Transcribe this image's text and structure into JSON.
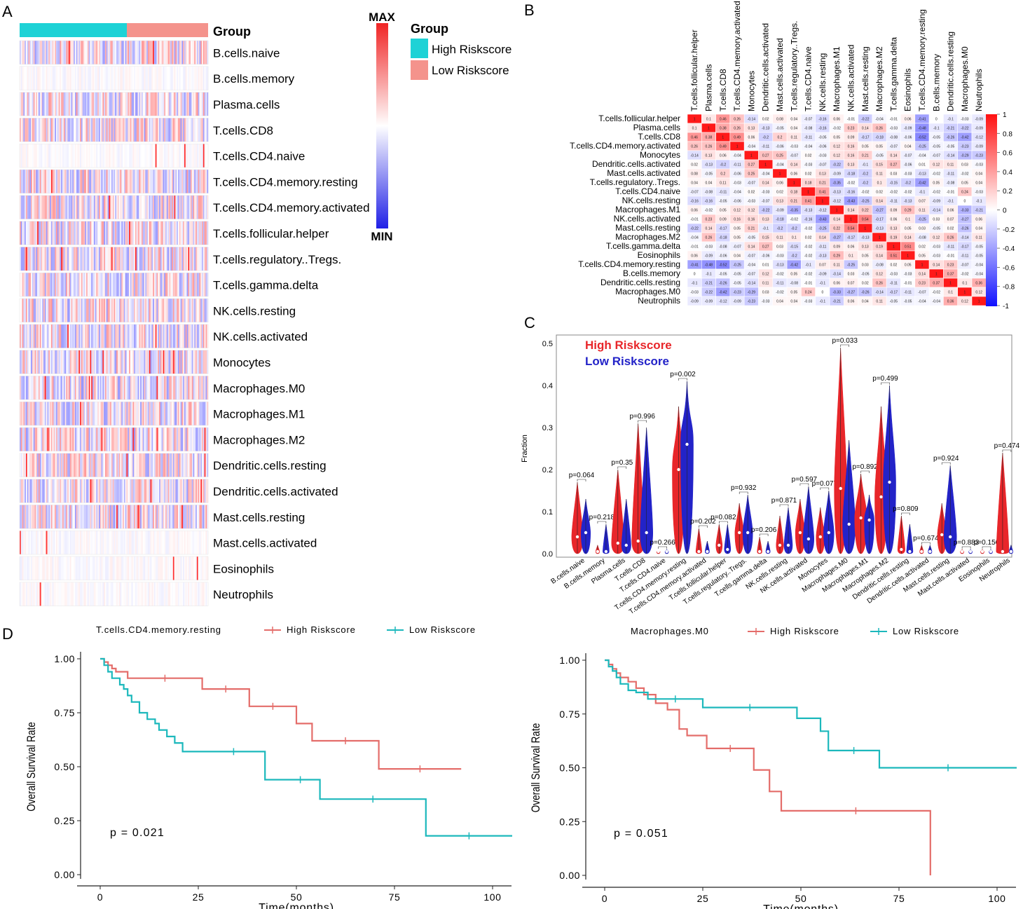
{
  "panel_labels": [
    "A",
    "B",
    "C",
    "D"
  ],
  "colors": {
    "high": "#1ed2d6",
    "low": "#f4938c",
    "red": "#e8262a",
    "blue": "#2323c8",
    "km_high": "#e46d6a",
    "km_low": "#1cb8bc"
  },
  "heatmap": {
    "group_label": "Group",
    "scale_max": "MAX",
    "scale_min": "MIN",
    "legend_title": "Group",
    "legend": [
      "High Riskscore",
      "Low Riskscore"
    ]
  },
  "corr": {
    "scale_ticks": [
      "1",
      "0.8",
      "0.6",
      "0.4",
      "0.2",
      "0",
      "-0.2",
      "-0.4",
      "-0.6",
      "-0.8",
      "-1"
    ],
    "cols": [
      "T.cells.follicular.helper",
      "Plasma.cells",
      "T.cells.CD8",
      "T.cells.CD4.memory.activated",
      "Monocytes",
      "Dendritic.cells.activated",
      "Mast.cells.activated",
      "T.cells.regulatory..Tregs.",
      "T.cells.CD4.naive",
      "NK.cells.resting",
      "Macrophages.M1",
      "NK.cells.activated",
      "Mast.cells.resting",
      "Macrophages.M2",
      "T.cells.gamma.delta",
      "Eosinophils",
      "T.cells.CD4.memory.resting",
      "B.cells.memory",
      "Dendritic.cells.resting",
      "Macrophages.M0",
      "Neutrophils"
    ],
    "rows": [
      "T.cells.follicular.helper",
      "Plasma.cells",
      "T.cells.CD8",
      "T.cells.CD4.memory.activated",
      "Monocytes",
      "Dendritic.cells.activated",
      "Mast.cells.activated",
      "T.cells.regulatory..Tregs.",
      "T.cells.CD4.naive",
      "NK.cells.resting",
      "Macrophages.M1",
      "NK.cells.activated",
      "Mast.cells.resting",
      "Macrophages.M2",
      "T.cells.gamma.delta",
      "Eosinophils",
      "T.cells.CD4.memory.resting",
      "B.cells.memory",
      "Dendritic.cells.resting",
      "Macrophages.M0",
      "Neutrophils"
    ]
  },
  "chart_data": [
    {
      "panel": "A",
      "type": "heatmap",
      "title": "",
      "group_annotation": "Group",
      "group_levels": [
        "High Riskscore",
        "Low Riskscore"
      ],
      "rows": [
        "B.cells.naive",
        "B.cells.memory",
        "Plasma.cells",
        "T.cells.CD8",
        "T.cells.CD4.naive",
        "T.cells.CD4.memory.resting",
        "T.cells.CD4.memory.activated",
        "T.cells.follicular.helper",
        "T.cells.regulatory..Tregs.",
        "T.cells.gamma.delta",
        "NK.cells.resting",
        "NK.cells.activated",
        "Monocytes",
        "Macrophages.M0",
        "Macrophages.M1",
        "Macrophages.M2",
        "Dendritic.cells.resting",
        "Dendritic.cells.activated",
        "Mast.cells.resting",
        "Mast.cells.activated",
        "Eosinophils",
        "Neutrophils"
      ],
      "color_scale": [
        "MIN",
        "MAX"
      ]
    },
    {
      "panel": "B",
      "type": "heatmap",
      "title": "",
      "values": [
        [
          1,
          0.1,
          0.46,
          0.26,
          -0.14,
          0.02,
          0.08,
          0.04,
          -0.07,
          -0.16,
          0.06,
          -0.01,
          -0.22,
          -0.04,
          -0.01,
          0.06,
          -0.41,
          0,
          -0.1,
          -0.03,
          -0.09
        ],
        [
          0.1,
          1,
          0.38,
          0.26,
          0.13,
          -0.13,
          -0.05,
          0.04,
          -0.08,
          -0.16,
          -0.02,
          0.23,
          0.14,
          0.26,
          -0.03,
          -0.09,
          -0.48,
          -0.1,
          -0.21,
          -0.22,
          -0.09
        ],
        [
          0.46,
          0.38,
          1,
          0.49,
          0.06,
          -0.2,
          0.2,
          0.11,
          -0.11,
          -0.05,
          0.05,
          0.09,
          -0.17,
          -0.18,
          -0.08,
          -0.06,
          -0.52,
          -0.05,
          -0.26,
          -0.42,
          -0.12
        ],
        [
          0.26,
          0.26,
          0.49,
          1,
          -0.04,
          -0.11,
          -0.06,
          -0.03,
          -0.04,
          -0.06,
          0.12,
          0.16,
          0.05,
          0.05,
          -0.07,
          0.04,
          -0.25,
          -0.05,
          -0.05,
          -0.23,
          -0.09
        ],
        [
          -0.14,
          0.13,
          0.06,
          -0.04,
          1,
          0.27,
          0.25,
          -0.07,
          0.02,
          -0.03,
          0.12,
          0.16,
          0.21,
          -0.05,
          0.14,
          -0.07,
          -0.04,
          -0.07,
          -0.14,
          -0.29,
          -0.23
        ],
        [
          0.02,
          -0.13,
          -0.2,
          -0.11,
          0.27,
          1,
          -0.04,
          0.14,
          -0.03,
          -0.07,
          -0.22,
          0.13,
          -0.1,
          0.15,
          0.27,
          -0.06,
          0.01,
          0.12,
          0.11,
          0.03,
          -0.03
        ],
        [
          0.08,
          -0.05,
          0.2,
          -0.06,
          0.25,
          -0.04,
          1,
          0.06,
          0.02,
          0.13,
          -0.09,
          -0.18,
          -0.2,
          0.11,
          0.03,
          -0.03,
          -0.13,
          -0.02,
          -0.11,
          -0.02,
          0.04
        ],
        [
          0.04,
          0.04,
          0.11,
          -0.03,
          -0.07,
          0.14,
          0.06,
          1,
          0.18,
          0.21,
          -0.35,
          -0.02,
          -0.2,
          0.1,
          -0.15,
          -0.2,
          -0.42,
          0.05,
          -0.08,
          0.05,
          0.04
        ],
        [
          -0.07,
          -0.08,
          -0.11,
          -0.04,
          0.02,
          -0.03,
          0.02,
          0.18,
          1,
          0.41,
          -0.13,
          -0.16,
          -0.02,
          0.02,
          -0.02,
          -0.02,
          -0.1,
          -0.02,
          -0.01,
          0.24,
          -0.03
        ],
        [
          -0.16,
          -0.16,
          -0.05,
          -0.06,
          -0.03,
          -0.07,
          0.13,
          0.21,
          0.41,
          1,
          -0.12,
          -0.43,
          -0.25,
          0.14,
          -0.11,
          -0.13,
          0.07,
          -0.09,
          -0.1,
          0,
          -0.1
        ],
        [
          0.06,
          -0.02,
          0.05,
          0.12,
          0.12,
          -0.22,
          -0.09,
          -0.35,
          -0.13,
          -0.12,
          1,
          0.14,
          0.22,
          -0.27,
          0.09,
          0.29,
          0.11,
          -0.14,
          0.06,
          -0.33,
          -0.21
        ],
        [
          -0.01,
          0.23,
          0.09,
          0.16,
          0.16,
          0.13,
          -0.18,
          -0.02,
          -0.16,
          -0.43,
          0.14,
          1,
          0.54,
          -0.17,
          0.06,
          0.1,
          -0.25,
          0.03,
          0.07,
          -0.27,
          0.06
        ],
        [
          -0.22,
          0.14,
          -0.17,
          0.05,
          0.21,
          -0.1,
          -0.2,
          -0.2,
          -0.02,
          -0.25,
          0.22,
          0.54,
          1,
          -0.13,
          0.13,
          0.05,
          0.03,
          -0.05,
          0.02,
          -0.26,
          0.04
        ],
        [
          -0.04,
          0.26,
          -0.18,
          0.05,
          -0.05,
          0.15,
          0.11,
          0.1,
          0.02,
          0.14,
          -0.27,
          -0.17,
          -0.13,
          1,
          0.19,
          0.14,
          -0.08,
          0.12,
          0.26,
          -0.14,
          0.11
        ],
        [
          -0.01,
          -0.03,
          -0.08,
          -0.07,
          0.14,
          0.27,
          0.03,
          -0.15,
          -0.02,
          -0.11,
          0.09,
          0.06,
          0.13,
          0.19,
          1,
          0.51,
          0.02,
          -0.03,
          -0.11,
          -0.17,
          -0.05
        ],
        [
          0.06,
          -0.09,
          -0.06,
          0.04,
          -0.07,
          -0.06,
          -0.03,
          -0.2,
          -0.02,
          -0.13,
          0.29,
          0.1,
          0.05,
          0.14,
          0.51,
          1,
          0.05,
          -0.03,
          -0.01,
          -0.11,
          -0.05
        ],
        [
          -0.41,
          -0.48,
          -0.52,
          -0.25,
          -0.04,
          0.01,
          -0.13,
          -0.42,
          -0.1,
          0.07,
          0.11,
          -0.25,
          0.03,
          -0.08,
          0.02,
          0.05,
          1,
          0.14,
          0.23,
          -0.07,
          -0.04
        ],
        [
          0,
          -0.1,
          -0.05,
          -0.05,
          -0.07,
          0.12,
          -0.02,
          0.05,
          -0.02,
          -0.09,
          -0.14,
          0.03,
          -0.05,
          0.12,
          -0.03,
          -0.03,
          0.14,
          1,
          0.37,
          -0.02,
          -0.04
        ],
        [
          -0.1,
          -0.21,
          -0.26,
          -0.05,
          -0.14,
          0.11,
          -0.11,
          -0.08,
          -0.01,
          -0.1,
          0.06,
          0.07,
          0.02,
          0.26,
          -0.11,
          -0.01,
          0.23,
          0.37,
          1,
          0.1,
          0.36
        ],
        [
          -0.03,
          -0.22,
          -0.42,
          -0.23,
          -0.29,
          0.03,
          -0.02,
          0.05,
          0.24,
          0,
          -0.33,
          -0.27,
          -0.26,
          -0.14,
          -0.17,
          -0.11,
          -0.07,
          -0.02,
          0.1,
          1,
          0.12
        ],
        [
          -0.09,
          -0.09,
          -0.12,
          -0.09,
          -0.23,
          -0.03,
          0.04,
          0.04,
          -0.03,
          -0.1,
          -0.21,
          0.06,
          0.04,
          0.11,
          -0.05,
          -0.05,
          -0.04,
          -0.04,
          0.36,
          0.12,
          1
        ]
      ],
      "color_range": [
        -1,
        1
      ]
    },
    {
      "panel": "C",
      "type": "violin",
      "title": "",
      "ylabel": "Fraction",
      "ylim": [
        0,
        0.5
      ],
      "yticks": [
        "0.0",
        "0.1",
        "0.2",
        "0.3",
        "0.4",
        "0.5"
      ],
      "legend": [
        "High Riskscore",
        "Low Riskscore"
      ],
      "categories": [
        "B.cells.naive",
        "B.cells.memory",
        "Plasma.cells",
        "T.cells.CD8",
        "T.cells.CD4.naive",
        "T.cells.CD4.memory.resting",
        "T.cells.CD4.memory.activated",
        "T.cells.follicular.helper",
        "T.cells.regulatory..Tregs.",
        "T.cells.gamma.delta",
        "NK.cells.resting",
        "NK.cells.activated",
        "Monocytes",
        "Macrophages.M0",
        "Macrophages.M1",
        "Macrophages.M2",
        "Dendritic.cells.resting",
        "Dendritic.cells.activated",
        "Mast.cells.resting",
        "Mast.cells.activated",
        "Eosinophils",
        "Neutrophils"
      ],
      "pvalues": [
        "p=0.064",
        "p=0.218",
        "p=0.35",
        "p=0.996",
        "p=0.266",
        "p=0.002",
        "p=0.202",
        "p=0.082",
        "p=0.932",
        "p=0.206",
        "p=0.871",
        "p=0.597",
        "p=0.077",
        "p=0.033",
        "p=0.892",
        "p=0.499",
        "p=0.809",
        "p=0.674",
        "p=0.924",
        "p=0.883",
        "p=0.156",
        "p=0.474"
      ],
      "series": [
        {
          "name": "High Riskscore",
          "max": [
            0.17,
            0.02,
            0.2,
            0.31,
            0.005,
            0.35,
            0.06,
            0.07,
            0.12,
            0.04,
            0.09,
            0.13,
            0.11,
            0.49,
            0.19,
            0.35,
            0.09,
            0.02,
            0.12,
            0.01,
            0.01,
            0.24
          ],
          "median": [
            0.04,
            0.005,
            0.025,
            0.03,
            0.0,
            0.2,
            0.0,
            0.02,
            0.05,
            0.0,
            0.02,
            0.05,
            0.04,
            0.155,
            0.085,
            0.135,
            0.01,
            0.0,
            0.045,
            0.0,
            0.0,
            0.0
          ]
        },
        {
          "name": "Low Riskscore",
          "max": [
            0.13,
            0.07,
            0.13,
            0.3,
            0.01,
            0.41,
            0.03,
            0.07,
            0.14,
            0.03,
            0.11,
            0.16,
            0.15,
            0.27,
            0.14,
            0.4,
            0.07,
            0.02,
            0.21,
            0.01,
            0.01,
            0.02
          ],
          "median": [
            0.05,
            0.0,
            0.02,
            0.05,
            0.0,
            0.26,
            0.0,
            0.01,
            0.05,
            0.0,
            0.02,
            0.035,
            0.05,
            0.07,
            0.08,
            0.17,
            0.005,
            0.0,
            0.04,
            0.0,
            0.0,
            0.0
          ]
        }
      ]
    },
    {
      "panel": "D-left",
      "type": "line",
      "title": "T.cells.CD4.memory.resting",
      "xlabel": "Time(months)",
      "ylabel": "Overall Survival Rate",
      "xlim": [
        0,
        105
      ],
      "ylim": [
        0,
        1
      ],
      "xticks": [
        "0",
        "25",
        "50",
        "75",
        "100"
      ],
      "yticks": [
        "0.00",
        "0.25",
        "0.50",
        "0.75",
        "1.00"
      ],
      "annotation": "p = 0.021",
      "series": [
        {
          "name": "High Riskscore",
          "x": [
            0,
            1,
            2,
            3,
            4,
            7,
            26,
            38,
            50,
            54,
            71,
            92
          ],
          "y": [
            1,
            0.985,
            0.97,
            0.955,
            0.94,
            0.91,
            0.86,
            0.78,
            0.7,
            0.62,
            0.49,
            0.49
          ]
        },
        {
          "name": "Low Riskscore",
          "x": [
            0,
            1,
            2,
            3,
            5,
            6,
            7,
            8,
            10,
            12,
            14,
            15,
            17,
            19,
            21,
            26,
            42,
            46,
            56,
            83,
            105
          ],
          "y": [
            1,
            0.97,
            0.94,
            0.91,
            0.88,
            0.86,
            0.83,
            0.8,
            0.75,
            0.72,
            0.7,
            0.67,
            0.64,
            0.61,
            0.57,
            0.57,
            0.44,
            0.44,
            0.35,
            0.18,
            0.18
          ]
        }
      ]
    },
    {
      "panel": "D-right",
      "type": "line",
      "title": "Macrophages.M0",
      "xlabel": "Time(months)",
      "ylabel": "Overall Survival Rate",
      "xlim": [
        0,
        105
      ],
      "ylim": [
        0,
        1
      ],
      "xticks": [
        "0",
        "25",
        "50",
        "75",
        "100"
      ],
      "yticks": [
        "0.00",
        "0.25",
        "0.50",
        "0.75",
        "1.00"
      ],
      "annotation": "p = 0.051",
      "series": [
        {
          "name": "High Riskscore",
          "x": [
            0,
            1,
            2,
            3,
            4,
            6,
            8,
            10,
            13,
            16,
            19,
            21,
            26,
            38,
            42,
            45,
            83
          ],
          "y": [
            1,
            0.98,
            0.96,
            0.94,
            0.92,
            0.9,
            0.87,
            0.84,
            0.8,
            0.77,
            0.68,
            0.65,
            0.59,
            0.49,
            0.39,
            0.3,
            0.0
          ]
        },
        {
          "name": "Low Riskscore",
          "x": [
            0,
            1,
            2,
            3,
            4,
            6,
            8,
            11,
            25,
            49,
            55,
            57,
            70,
            105
          ],
          "y": [
            1,
            0.97,
            0.95,
            0.92,
            0.89,
            0.86,
            0.85,
            0.82,
            0.78,
            0.73,
            0.67,
            0.58,
            0.5,
            0.5
          ]
        }
      ]
    }
  ]
}
